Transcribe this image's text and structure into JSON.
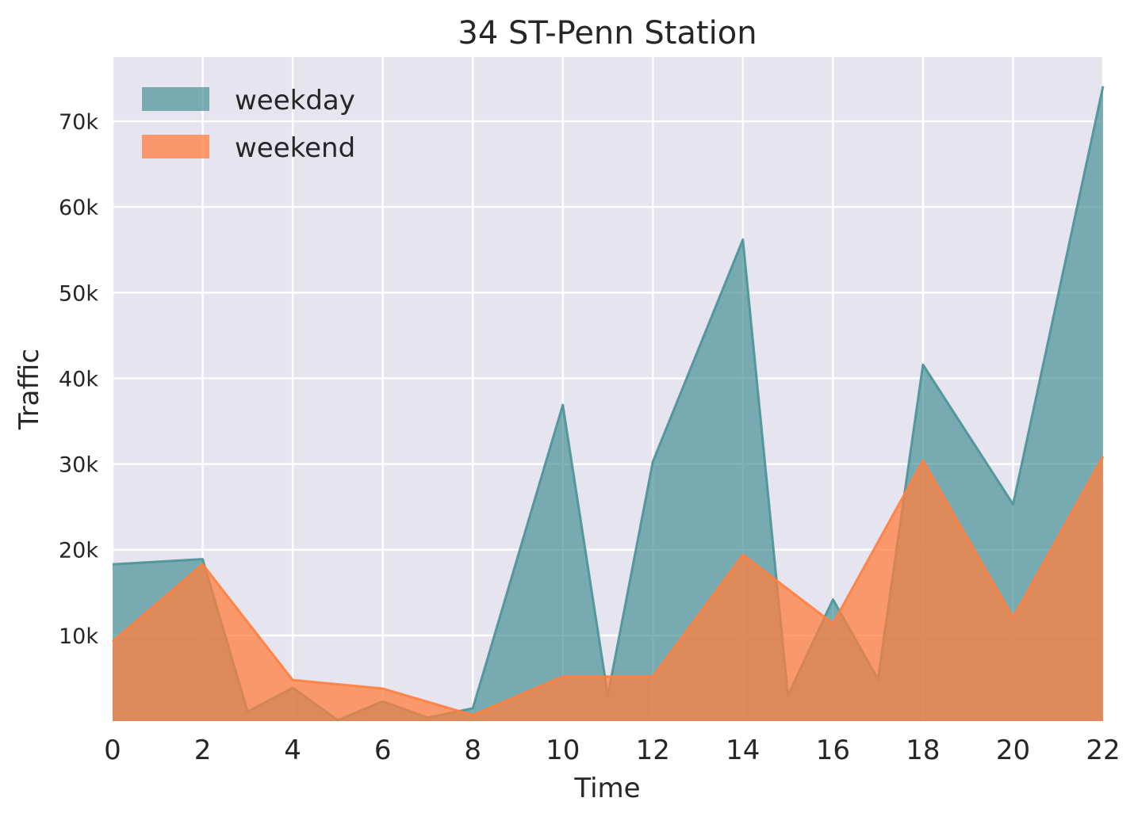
{
  "chart_data": {
    "type": "area",
    "title": "34 ST-Penn Station",
    "xlabel": "Time",
    "ylabel": "Traffic",
    "xlim": [
      0,
      22
    ],
    "ylim": [
      0,
      77500
    ],
    "xticks": [
      0,
      2,
      4,
      6,
      8,
      10,
      12,
      14,
      16,
      18,
      20,
      22
    ],
    "xtick_labels": [
      "0",
      "2",
      "4",
      "6",
      "8",
      "10",
      "12",
      "14",
      "16",
      "18",
      "20",
      "22"
    ],
    "yticks": [
      10000,
      20000,
      30000,
      40000,
      50000,
      60000,
      70000
    ],
    "ytick_labels": [
      "10k",
      "20k",
      "30k",
      "40k",
      "50k",
      "60k",
      "70k"
    ],
    "grid": true,
    "background": "#e5e4ef",
    "legend_position": "top-left",
    "series": [
      {
        "name": "weekday",
        "color": "#4a9297",
        "x": [
          0,
          2,
          3,
          4,
          5,
          6,
          7,
          8,
          10,
          11,
          12,
          14,
          15,
          16,
          17,
          18,
          20,
          22
        ],
        "values": [
          18300,
          18900,
          1100,
          3900,
          100,
          2300,
          400,
          1500,
          36900,
          3000,
          30300,
          56200,
          3000,
          14200,
          4900,
          41600,
          25300,
          74100
        ]
      },
      {
        "name": "weekend",
        "color": "#ff7f3f",
        "x": [
          0,
          2,
          4,
          6,
          8,
          10,
          12,
          14,
          16,
          18,
          20,
          22
        ],
        "values": [
          9300,
          18300,
          4800,
          3800,
          700,
          5200,
          5200,
          19400,
          11400,
          30400,
          12100,
          30900
        ]
      }
    ]
  }
}
